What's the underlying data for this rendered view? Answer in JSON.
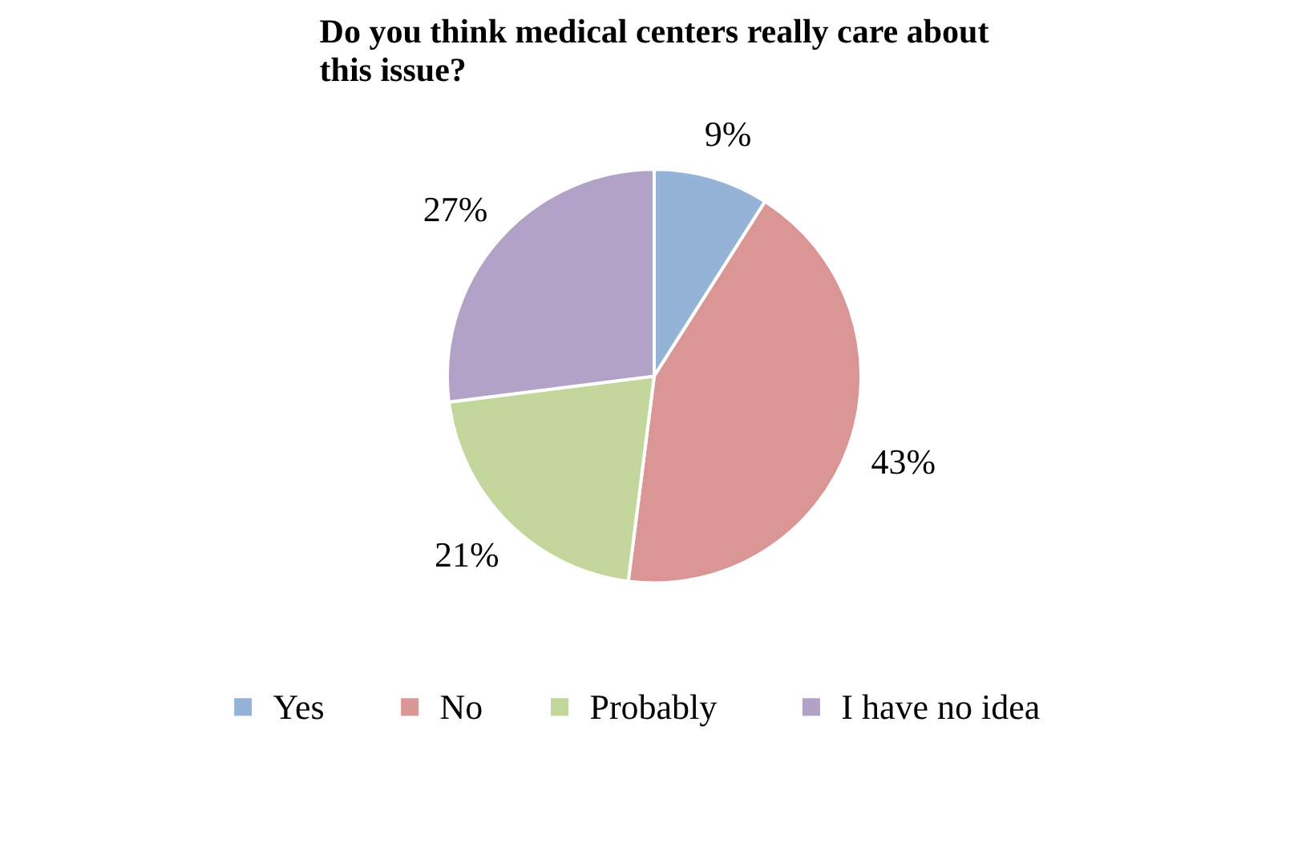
{
  "chart_data": {
    "type": "pie",
    "title": "Do you think medical centers really care about this issue?",
    "categories": [
      "Yes",
      "No",
      "Probably",
      "I have no idea"
    ],
    "values": [
      9,
      43,
      21,
      27
    ],
    "value_labels": [
      "9%",
      "43%",
      "21%",
      "27%"
    ],
    "colors": [
      "#95b3d7",
      "#d99694",
      "#c3d69b",
      "#b2a2c7"
    ],
    "legend": "bottom"
  }
}
